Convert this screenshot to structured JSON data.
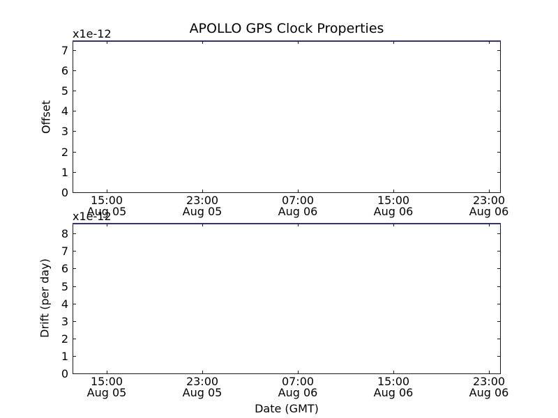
{
  "figure": {
    "title": "APOLLO GPS Clock Properties",
    "xlabel": "Date (GMT)",
    "background_color": "#ffffff",
    "spine_color": "#1a1a1a",
    "top_line_color": "#34346a"
  },
  "plots": [
    {
      "name": "offset",
      "ylabel": "Offset",
      "multiplier": "x1e-12",
      "y_ticks": [
        "0",
        "1",
        "2",
        "3",
        "4",
        "5",
        "6",
        "7"
      ],
      "x_ticks": [
        {
          "time": "15:00",
          "date": "Aug 05"
        },
        {
          "time": "23:00",
          "date": "Aug 05"
        },
        {
          "time": "07:00",
          "date": "Aug 06"
        },
        {
          "time": "15:00",
          "date": "Aug 06"
        },
        {
          "time": "23:00",
          "date": "Aug 06"
        }
      ]
    },
    {
      "name": "drift",
      "ylabel": "Drift (per day)",
      "multiplier": "x1e-12",
      "y_ticks": [
        "0",
        "1",
        "2",
        "3",
        "4",
        "5",
        "6",
        "7",
        "8"
      ],
      "x_ticks": [
        {
          "time": "15:00",
          "date": "Aug 05"
        },
        {
          "time": "23:00",
          "date": "Aug 05"
        },
        {
          "time": "07:00",
          "date": "Aug 06"
        },
        {
          "time": "15:00",
          "date": "Aug 06"
        },
        {
          "time": "23:00",
          "date": "Aug 06"
        }
      ]
    }
  ],
  "chart_data": [
    {
      "type": "line",
      "title": "APOLLO GPS Clock Properties",
      "ylabel": "Offset",
      "y_scale_label": "x1e-12",
      "y_tick_values": [
        0,
        1,
        2,
        3,
        4,
        5,
        6,
        7
      ],
      "ylim": [
        0,
        7.5
      ],
      "x_tick_labels": [
        "15:00 Aug 05",
        "23:00 Aug 05",
        "07:00 Aug 06",
        "15:00 Aug 06",
        "23:00 Aug 06"
      ],
      "grid": false,
      "legend": false,
      "series": [
        {
          "name": "offset",
          "color": "#34346a",
          "appearance": "flat-line-clipped-at-top-axis-edge",
          "x": [
            "Aug 05 13:30",
            "Aug 06 23:30"
          ],
          "values": [
            7.5,
            7.5
          ]
        }
      ]
    },
    {
      "type": "line",
      "title": "",
      "xlabel": "Date (GMT)",
      "ylabel": "Drift (per day)",
      "y_scale_label": "x1e-12",
      "y_tick_values": [
        0,
        1,
        2,
        3,
        4,
        5,
        6,
        7,
        8
      ],
      "ylim": [
        0,
        8.65
      ],
      "x_tick_labels": [
        "15:00 Aug 05",
        "23:00 Aug 05",
        "07:00 Aug 06",
        "15:00 Aug 06",
        "23:00 Aug 06"
      ],
      "grid": false,
      "legend": false,
      "series": [
        {
          "name": "drift",
          "color": "#34346a",
          "appearance": "flat-line-clipped-at-top-axis-edge",
          "x": [
            "Aug 05 13:30",
            "Aug 06 23:30"
          ],
          "values": [
            8.65,
            8.65
          ]
        }
      ]
    }
  ]
}
